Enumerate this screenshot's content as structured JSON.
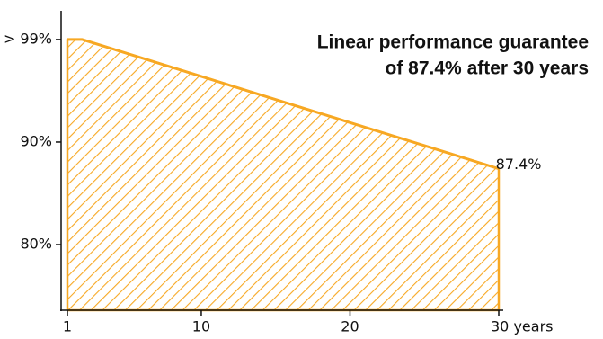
{
  "chart_data": {
    "type": "area",
    "title": [
      "Linear performance guarantee",
      "of 87.4% after 30 years"
    ],
    "x": [
      1,
      2,
      30
    ],
    "series": [
      {
        "color": "#f7a823",
        "values": [
          100,
          100,
          87.4
        ],
        "value_labels": [
          null,
          null,
          "87.4%"
        ]
      }
    ],
    "xlim": [
      1,
      30
    ],
    "xticks": [
      1,
      10,
      20,
      {
        "value": 30,
        "label": "30 years"
      }
    ],
    "ylim": [
      73.6,
      102.8
    ],
    "yticks": [
      {
        "value": 80,
        "label": "80%"
      },
      {
        "value": 90,
        "label": "90%"
      },
      {
        "value": 100,
        "label": "> 99%"
      }
    ],
    "hatch": true
  }
}
